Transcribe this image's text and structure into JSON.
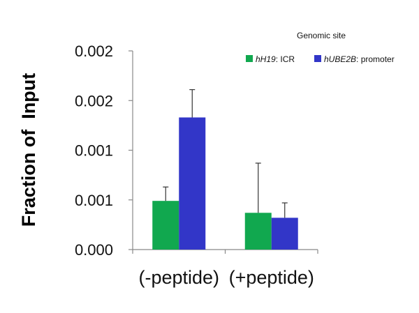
{
  "chart_data": {
    "type": "bar",
    "title": "",
    "xlabel": "",
    "ylabel": "Fraction of  Input",
    "categories": [
      "(-peptide)",
      "(+peptide)"
    ],
    "y_tick_labels": [
      "0.000",
      "0.001",
      "0.001",
      "0.002",
      "0.002"
    ],
    "ylim": [
      0,
      0.002
    ],
    "grid": false,
    "legend": {
      "title": "Genomic site",
      "position": "top-right",
      "entries": [
        {
          "italic": "hH19",
          "rest": ": ICR"
        },
        {
          "italic": "hUBE2B",
          "rest": ": promoter"
        }
      ]
    },
    "series": [
      {
        "name": "hH19: ICR",
        "color": "#11a84f",
        "values": [
          0.00049,
          0.00037
        ],
        "errors": [
          0.00014,
          0.0005
        ]
      },
      {
        "name": "hUBE2B: promoter",
        "color": "#3236c8",
        "values": [
          0.00133,
          0.00032
        ],
        "errors": [
          0.00028,
          0.00015
        ]
      }
    ]
  }
}
